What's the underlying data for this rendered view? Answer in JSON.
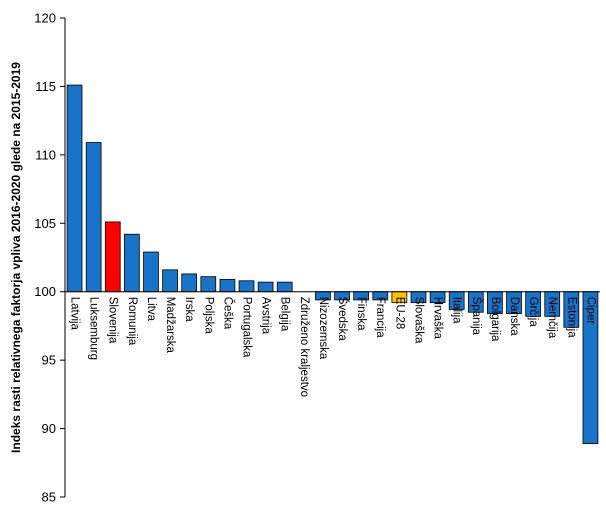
{
  "chart_data": {
    "type": "bar",
    "ylabel": "Indeks rasti relativnega faktorja vpliva 2016-2020 glede na 2015-2019",
    "ylim": [
      85,
      120
    ],
    "yticks": [
      85,
      90,
      95,
      100,
      105,
      110,
      115,
      120
    ],
    "baseline": 100,
    "grid": false,
    "categories": [
      "Latvija",
      "Luksemburg",
      "Slovenija",
      "Romunija",
      "Litva",
      "Madžarska",
      "Irska",
      "Poljska",
      "Češka",
      "Portugalska",
      "Avstrija",
      "Belgija",
      "Združeno kraljestvo",
      "Nizozemska",
      "Švedska",
      "Finska",
      "Francija",
      "EU-28",
      "Slovaška",
      "Hrvaška",
      "Italija",
      "Španija",
      "Bolgarija",
      "Danska",
      "Grčija",
      "Nemčija",
      "Estonija",
      "Ciper"
    ],
    "values": [
      115.1,
      110.9,
      105.1,
      104.2,
      102.9,
      101.6,
      101.3,
      101.1,
      100.9,
      100.8,
      100.7,
      100.7,
      100.0,
      99.4,
      99.4,
      99.4,
      99.4,
      99.2,
      99.2,
      99.2,
      98.7,
      98.5,
      98.4,
      98.4,
      98.2,
      98.2,
      97.4,
      88.9
    ],
    "bar_colors": [
      "#1874c8",
      "#1874c8",
      "#ff0000",
      "#1874c8",
      "#1874c8",
      "#1874c8",
      "#1874c8",
      "#1874c8",
      "#1874c8",
      "#1874c8",
      "#1874c8",
      "#1874c8",
      "#1874c8",
      "#1874c8",
      "#1874c8",
      "#1874c8",
      "#1874c8",
      "#ffc000",
      "#1874c8",
      "#1874c8",
      "#1874c8",
      "#1874c8",
      "#1874c8",
      "#1874c8",
      "#1874c8",
      "#1874c8",
      "#1874c8",
      "#1874c8"
    ],
    "bar_stroke": "#000000"
  }
}
